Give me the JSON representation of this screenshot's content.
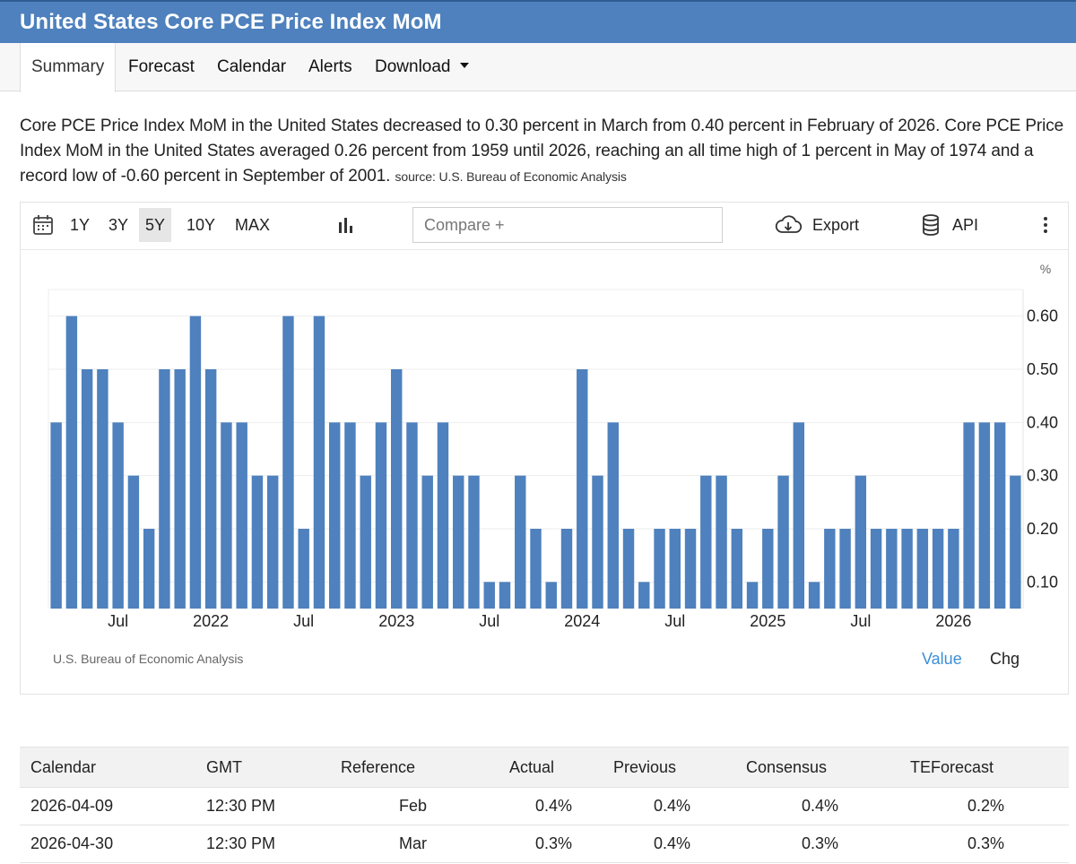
{
  "header": {
    "title": "United States Core PCE Price Index MoM"
  },
  "tabs": [
    {
      "label": "Summary",
      "active": true
    },
    {
      "label": "Forecast"
    },
    {
      "label": "Calendar"
    },
    {
      "label": "Alerts"
    },
    {
      "label": "Download"
    }
  ],
  "description": {
    "text": "Core PCE Price Index MoM in the United States decreased to 0.30 percent in March from 0.40 percent in February of 2026. Core PCE Price Index MoM in the United States averaged 0.26 percent from 1959 until 2026, reaching an all time high of 1 percent in May of 1974 and a record low of -0.60 percent in September of 2001.",
    "source": "source: U.S. Bureau of Economic Analysis"
  },
  "toolbar": {
    "ranges": [
      "1Y",
      "3Y",
      "5Y",
      "10Y",
      "MAX"
    ],
    "selected_range": "5Y",
    "compare_placeholder": "Compare +",
    "export_label": "Export",
    "api_label": "API",
    "icons": [
      "calendar-icon",
      "bar-chart-icon",
      "cloud-download-icon",
      "database-icon",
      "more-vertical-icon"
    ]
  },
  "chart_data": {
    "type": "bar",
    "unit": "%",
    "color": "#4e81bd",
    "ylim": [
      0.05,
      0.65
    ],
    "yticks": [
      "0.10",
      "0.20",
      "0.30",
      "0.40",
      "0.50",
      "0.60"
    ],
    "xticks": [
      "Jul",
      "2022",
      "Jul",
      "2023",
      "Jul",
      "2024",
      "Jul",
      "2025",
      "Jul",
      "2026"
    ],
    "grid": true,
    "values": [
      0.4,
      0.6,
      0.5,
      0.5,
      0.4,
      0.3,
      0.2,
      0.5,
      0.5,
      0.6,
      0.5,
      0.4,
      0.4,
      0.3,
      0.3,
      0.6,
      0.2,
      0.6,
      0.4,
      0.4,
      0.3,
      0.4,
      0.5,
      0.4,
      0.3,
      0.4,
      0.3,
      0.3,
      0.1,
      0.1,
      0.3,
      0.2,
      0.1,
      0.2,
      0.5,
      0.3,
      0.4,
      0.2,
      0.1,
      0.2,
      0.2,
      0.2,
      0.3,
      0.3,
      0.2,
      0.1,
      0.2,
      0.3,
      0.4,
      0.1,
      0.2,
      0.2,
      0.3,
      0.2,
      0.2,
      0.2,
      0.2,
      0.2,
      0.2,
      0.4,
      0.4,
      0.4,
      0.3
    ],
    "source": "U.S. Bureau of Economic Analysis",
    "view_tabs": [
      "Value",
      "Chg"
    ],
    "selected_view": "Value"
  },
  "calendar_table": {
    "headers": [
      "Calendar",
      "GMT",
      "Reference",
      "Actual",
      "Previous",
      "Consensus",
      "TEForecast"
    ],
    "rows": [
      [
        "2026-04-09",
        "12:30 PM",
        "Feb",
        "0.4%",
        "0.4%",
        "0.4%",
        "0.2%"
      ],
      [
        "2026-04-30",
        "12:30 PM",
        "Mar",
        "0.3%",
        "0.4%",
        "0.3%",
        "0.3%"
      ]
    ]
  }
}
